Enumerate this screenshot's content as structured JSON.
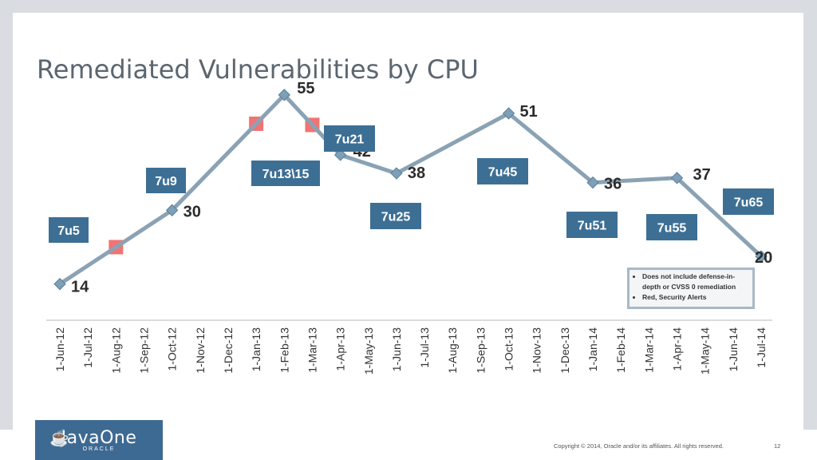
{
  "slide": {
    "title": "Remediated Vulnerabilities by CPU",
    "copyright": "Copyright © 2014, Oracle and/or its affiliates. All rights reserved.",
    "page_number": "12",
    "logo": {
      "name": "JavaOne",
      "sub": "ORACLE"
    }
  },
  "notes": [
    "Does not include defense-in-depth or CVSS 0 remediation",
    "Red, Security Alerts"
  ],
  "colors": {
    "line": "#8aa2b4",
    "marker": "#7d9fb8",
    "label_box": "#3d6f95",
    "alert": "#f05b5b"
  },
  "chart_data": {
    "type": "line",
    "title": "Remediated Vulnerabilities by CPU",
    "xlabel": "",
    "ylabel": "",
    "ylim": [
      0,
      60
    ],
    "grid": false,
    "categories": [
      "1-Jun-12",
      "1-Jul-12",
      "1-Aug-12",
      "1-Sep-12",
      "1-Oct-12",
      "1-Nov-12",
      "1-Dec-12",
      "1-Jan-13",
      "1-Feb-13",
      "1-Mar-13",
      "1-Apr-13",
      "1-May-13",
      "1-Jun-13",
      "1-Jul-13",
      "1-Aug-13",
      "1-Sep-13",
      "1-Oct-13",
      "1-Nov-13",
      "1-Dec-13",
      "1-Jan-14",
      "1-Feb-14",
      "1-Mar-14",
      "1-Apr-14",
      "1-May-14",
      "1-Jun-14",
      "1-Jul-14"
    ],
    "series": [
      {
        "points": [
          {
            "x": "1-Jun-12",
            "y": 14,
            "label": "14"
          },
          {
            "x": "1-Oct-12",
            "y": 30,
            "label": "30"
          },
          {
            "x": "1-Feb-13",
            "y": 55,
            "label": "55"
          },
          {
            "x": "1-Apr-13",
            "y": 42,
            "label": "42"
          },
          {
            "x": "1-Jun-13",
            "y": 38,
            "label": "38"
          },
          {
            "x": "1-Oct-13",
            "y": 51,
            "label": "51"
          },
          {
            "x": "1-Jan-14",
            "y": 36,
            "label": "36"
          },
          {
            "x": "1-Apr-14",
            "y": 37,
            "label": "37"
          },
          {
            "x": "1-Jul-14",
            "y": 20,
            "label": "20"
          }
        ]
      }
    ],
    "security_alerts": [
      {
        "x": "1-Aug-12"
      },
      {
        "x": "1-Jan-13"
      },
      {
        "x": "1-Mar-13"
      }
    ],
    "release_labels": [
      "7u5",
      "7u9",
      "7u13\\15",
      "7u21",
      "7u25",
      "7u45",
      "7u51",
      "7u55",
      "7u65"
    ]
  }
}
